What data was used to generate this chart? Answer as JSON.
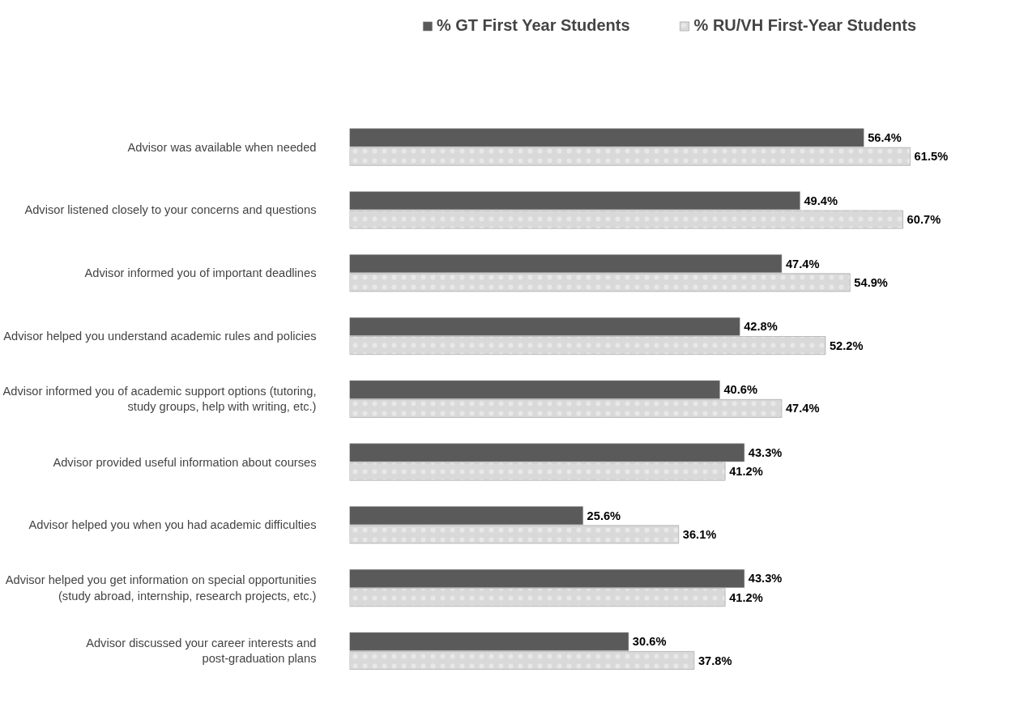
{
  "chart_data": {
    "type": "bar",
    "orientation": "horizontal",
    "legend": "top",
    "grid": false,
    "tick_labels": "y",
    "categories": [
      "Advisor was available when needed",
      "Advisor listened closely to your concerns and questions",
      "Advisor informed you of important deadlines",
      "Advisor helped you understand academic rules and policies",
      "Advisor informed you of academic support options (tutoring,\nstudy groups, help with writing, etc.)",
      "Advisor provided useful information about courses",
      "Advisor helped you when you had academic difficulties",
      "Advisor helped you get information on special opportunities\n(study abroad, internship, research projects, etc.)",
      "Advisor discussed your career interests and\npost-graduation plans"
    ],
    "series": [
      {
        "name": "% GT First Year Students",
        "color": "#5a5a5a",
        "values": [
          56.4,
          49.4,
          47.4,
          42.8,
          40.6,
          43.3,
          25.6,
          43.3,
          30.6
        ],
        "value_labels": [
          "56.4%",
          "49.4%",
          "47.4%",
          "42.8%",
          "40.6%",
          "43.3%",
          "25.6%",
          "43.3%",
          "30.6%"
        ]
      },
      {
        "name": "% RU/VH First-Year Students",
        "color": "#d9d9d9",
        "values": [
          61.5,
          60.7,
          54.9,
          52.2,
          47.4,
          41.2,
          36.1,
          41.2,
          37.8
        ],
        "value_labels": [
          "61.5%",
          "60.7%",
          "54.9%",
          "52.2%",
          "47.4%",
          "41.2%",
          "36.1%",
          "41.2%",
          "37.8%"
        ]
      }
    ]
  }
}
